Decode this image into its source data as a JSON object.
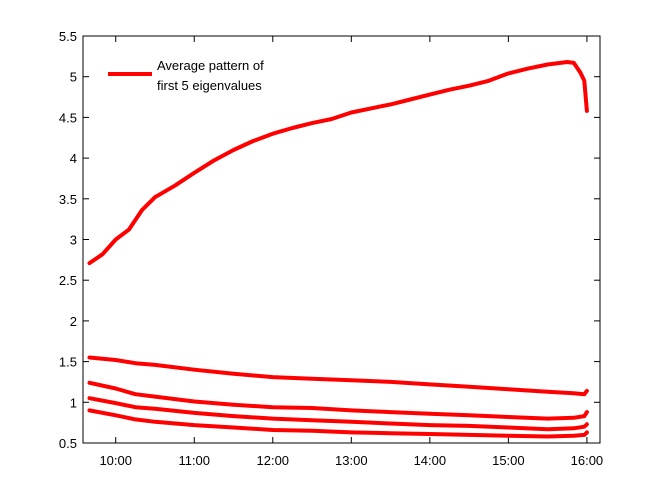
{
  "chart_data": {
    "type": "line",
    "title": "",
    "xlabel": "",
    "ylabel": "",
    "xlim": [
      "09:35",
      "16:10"
    ],
    "ylim": [
      0.5,
      5.5
    ],
    "x_ticks": [
      "10:00",
      "11:00",
      "12:00",
      "13:00",
      "14:00",
      "15:00",
      "16:00"
    ],
    "y_ticks": [
      "0.5",
      "1",
      "1.5",
      "2",
      "2.5",
      "3",
      "3.5",
      "4",
      "4.5",
      "5",
      "5.5"
    ],
    "grid": false,
    "legend": {
      "position": "top-left",
      "entries": [
        "Average pattern of first 5 eigenvalues"
      ],
      "lines": [
        "Average pattern of",
        "first 5 eigenvalues"
      ]
    },
    "line_color": "#ff0000",
    "series": [
      {
        "x": [
          "09:40",
          "09:50",
          "10:00",
          "10:10",
          "10:20",
          "10:30",
          "10:45",
          "11:00",
          "11:15",
          "11:30",
          "11:45",
          "12:00",
          "12:15",
          "12:30",
          "12:45",
          "13:00",
          "13:15",
          "13:30",
          "13:45",
          "14:00",
          "14:15",
          "14:30",
          "14:45",
          "15:00",
          "15:15",
          "15:30",
          "15:45",
          "15:50",
          "15:55",
          "15:58",
          "16:00"
        ],
        "values": [
          2.71,
          2.82,
          3.0,
          3.12,
          3.36,
          3.52,
          3.66,
          3.82,
          3.97,
          4.1,
          4.21,
          4.3,
          4.37,
          4.43,
          4.48,
          4.56,
          4.61,
          4.66,
          4.72,
          4.78,
          4.84,
          4.89,
          4.95,
          5.04,
          5.1,
          5.15,
          5.18,
          5.17,
          5.05,
          4.95,
          4.58
        ]
      },
      {
        "x": [
          "09:40",
          "10:00",
          "10:15",
          "10:30",
          "11:00",
          "11:30",
          "12:00",
          "12:30",
          "13:00",
          "13:30",
          "14:00",
          "14:30",
          "15:00",
          "15:30",
          "15:50",
          "15:58",
          "16:00"
        ],
        "values": [
          1.55,
          1.52,
          1.48,
          1.46,
          1.4,
          1.35,
          1.31,
          1.29,
          1.27,
          1.25,
          1.22,
          1.19,
          1.16,
          1.13,
          1.11,
          1.1,
          1.14
        ]
      },
      {
        "x": [
          "09:40",
          "10:00",
          "10:15",
          "10:30",
          "11:00",
          "11:30",
          "12:00",
          "12:30",
          "13:00",
          "13:30",
          "14:00",
          "14:30",
          "15:00",
          "15:30",
          "15:50",
          "15:58",
          "16:00"
        ],
        "values": [
          1.24,
          1.17,
          1.1,
          1.07,
          1.01,
          0.97,
          0.94,
          0.93,
          0.9,
          0.88,
          0.86,
          0.84,
          0.82,
          0.8,
          0.81,
          0.83,
          0.88
        ]
      },
      {
        "x": [
          "09:40",
          "10:00",
          "10:15",
          "10:30",
          "11:00",
          "11:30",
          "12:00",
          "12:30",
          "13:00",
          "13:30",
          "14:00",
          "14:30",
          "15:00",
          "15:30",
          "15:50",
          "15:58",
          "16:00"
        ],
        "values": [
          1.05,
          0.99,
          0.94,
          0.92,
          0.87,
          0.83,
          0.8,
          0.78,
          0.76,
          0.74,
          0.72,
          0.71,
          0.69,
          0.67,
          0.68,
          0.7,
          0.73
        ]
      },
      {
        "x": [
          "09:40",
          "10:00",
          "10:15",
          "10:30",
          "11:00",
          "11:30",
          "12:00",
          "12:30",
          "13:00",
          "13:30",
          "14:00",
          "14:30",
          "15:00",
          "15:30",
          "15:50",
          "15:58",
          "16:00"
        ],
        "values": [
          0.9,
          0.84,
          0.79,
          0.76,
          0.72,
          0.69,
          0.66,
          0.65,
          0.63,
          0.62,
          0.61,
          0.6,
          0.59,
          0.58,
          0.59,
          0.6,
          0.63
        ]
      }
    ]
  }
}
